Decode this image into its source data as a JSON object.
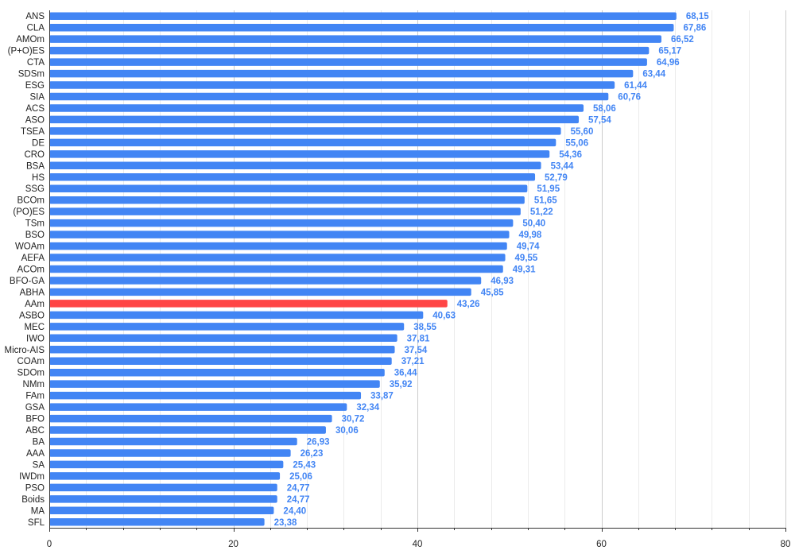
{
  "chart_data": {
    "type": "bar",
    "orientation": "horizontal",
    "title": "",
    "xlabel": "",
    "ylabel": "",
    "xlim": [
      0,
      80
    ],
    "x_ticks": [
      "0",
      "20",
      "40",
      "60",
      "80"
    ],
    "grid": true,
    "legend": "none",
    "colors": {
      "bar": "#4285f4",
      "highlight": "#ff4545",
      "value_label": "#4285f4",
      "highlight_label": "#4285f4",
      "grid": "#e0e0e0",
      "axis": "#333333"
    },
    "highlight_category": "AAm",
    "categories": [
      "ANS",
      "CLA",
      "AMOm",
      "(P+O)ES",
      "CTA",
      "SDSm",
      "ESG",
      "SIA",
      "ACS",
      "ASO",
      "TSEA",
      "DE",
      "CRO",
      "BSA",
      "HS",
      "SSG",
      "BCOm",
      "(PO)ES",
      "TSm",
      "BSO",
      "WOAm",
      "AEFA",
      "ACOm",
      "BFO-GA",
      "ABHA",
      "AAm",
      "ASBO",
      "MEC",
      "IWO",
      "Micro-AIS",
      "COAm",
      "SDOm",
      "NMm",
      "FAm",
      "GSA",
      "BFO",
      "ABC",
      "BA",
      "AAA",
      "SA",
      "IWDm",
      "PSO",
      "Boids",
      "MA",
      "SFL"
    ],
    "values": [
      68.15,
      67.86,
      66.52,
      65.17,
      64.96,
      63.44,
      61.44,
      60.76,
      58.06,
      57.54,
      55.6,
      55.06,
      54.36,
      53.44,
      52.79,
      51.95,
      51.65,
      51.22,
      50.4,
      49.98,
      49.74,
      49.55,
      49.31,
      46.93,
      45.85,
      43.26,
      40.63,
      38.55,
      37.81,
      37.54,
      37.21,
      36.44,
      35.92,
      33.87,
      32.34,
      30.72,
      30.06,
      26.93,
      26.23,
      25.43,
      25.06,
      24.77,
      24.77,
      24.4,
      23.38
    ],
    "value_labels": [
      "68,15",
      "67,86",
      "66,52",
      "65,17",
      "64,96",
      "63,44",
      "61,44",
      "60,76",
      "58,06",
      "57,54",
      "55,60",
      "55,06",
      "54,36",
      "53,44",
      "52,79",
      "51,95",
      "51,65",
      "51,22",
      "50,40",
      "49,98",
      "49,74",
      "49,55",
      "49,31",
      "46,93",
      "45,85",
      "43,26",
      "40,63",
      "38,55",
      "37,81",
      "37,54",
      "37,21",
      "36,44",
      "35,92",
      "33,87",
      "32,34",
      "30,72",
      "30,06",
      "26,93",
      "26,23",
      "25,43",
      "25,06",
      "24,77",
      "24,77",
      "24,40",
      "23,38"
    ]
  }
}
